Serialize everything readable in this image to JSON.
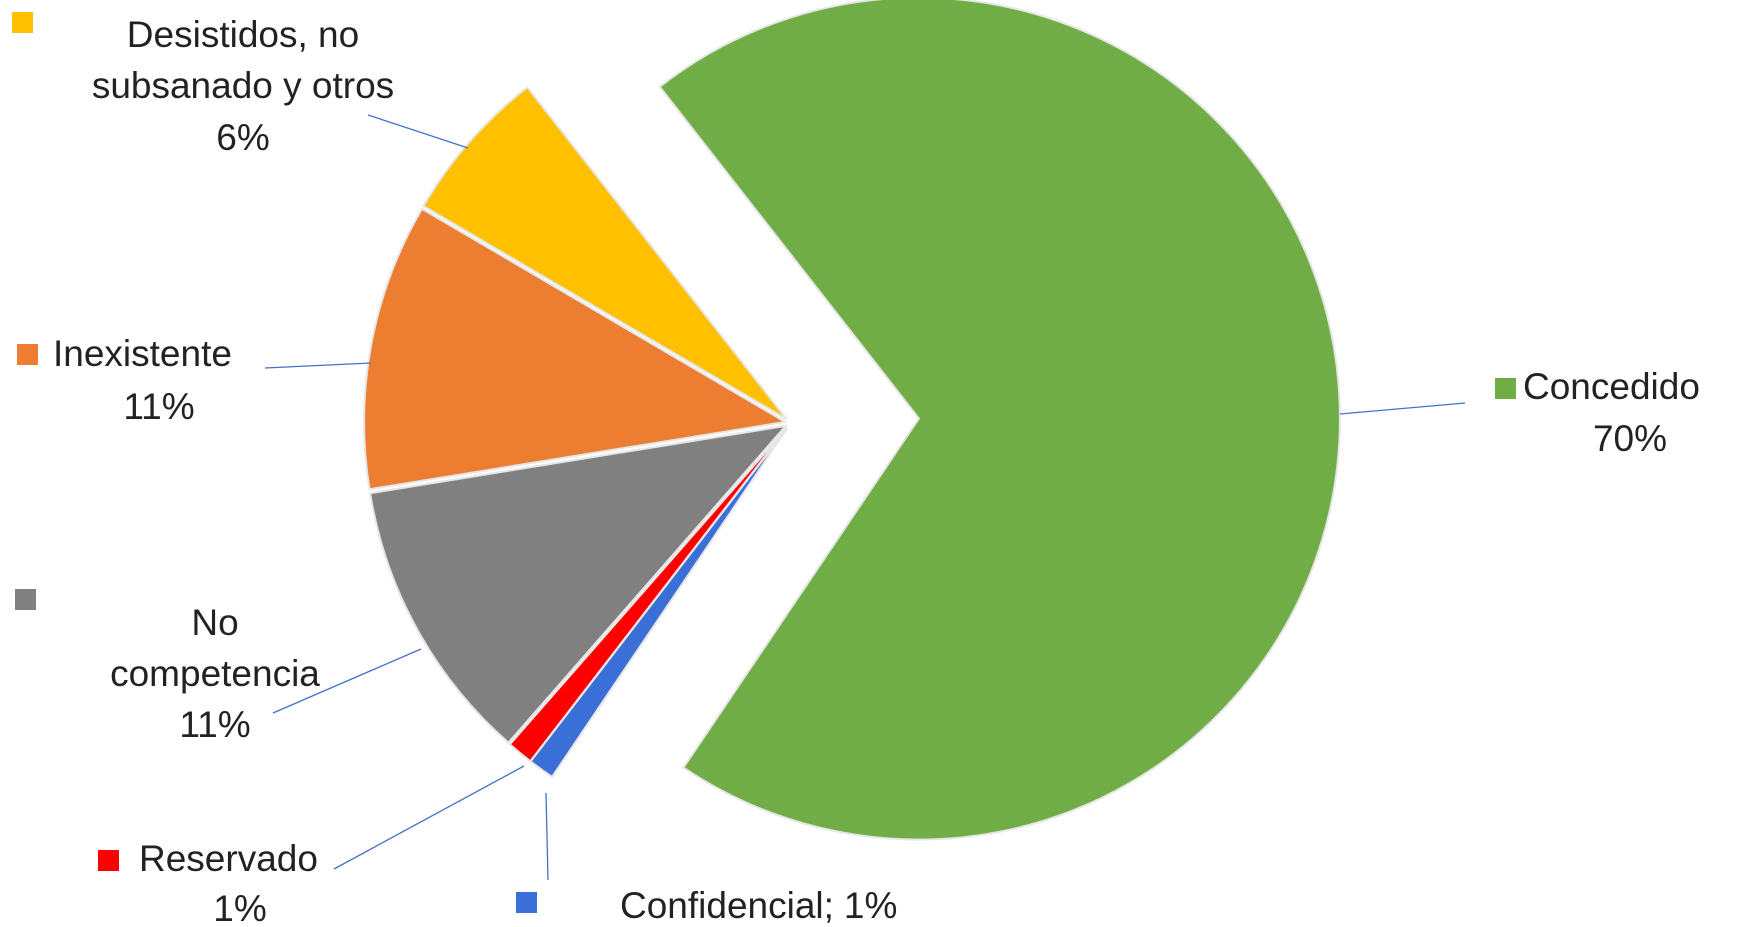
{
  "chart_data": {
    "type": "pie",
    "categories": [
      "Concedido",
      "Confidencial;",
      "Reservado",
      "No competencia",
      "Inexistente",
      "Desistidos, no subsanado y otros"
    ],
    "values": [
      70,
      1,
      1,
      11,
      11,
      6
    ],
    "value_labels": [
      "70%",
      "1%",
      "1%",
      "11%",
      "11%",
      "6%"
    ],
    "colors": [
      "#70ad47",
      "#3a6fd8",
      "#ff0000",
      "#808080",
      "#ed7d31",
      "#ffc000"
    ]
  }
}
